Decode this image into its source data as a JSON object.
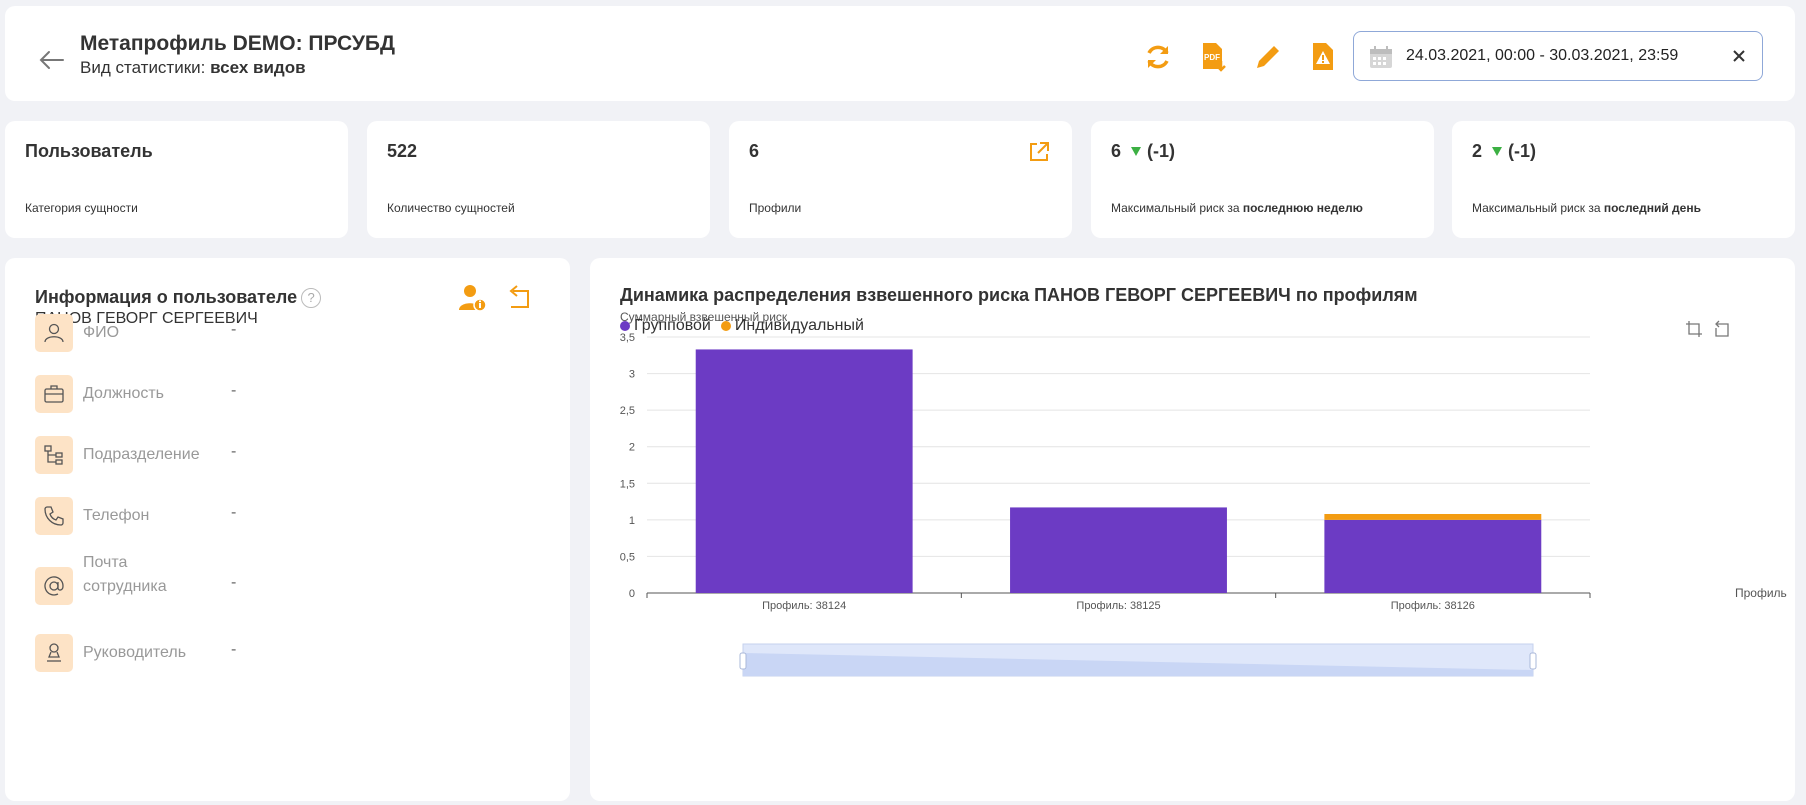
{
  "header": {
    "title": "Метапрофиль DEMO: ПРСУБД",
    "subtitle_prefix": "Вид статистики:",
    "subtitle_value": "всех видов",
    "date_range": "24.03.2021, 00:00 - 30.03.2021, 23:59",
    "icons": [
      "back-arrow-icon",
      "refresh-icon",
      "pdf-download-icon",
      "pencil-icon",
      "alert-file-icon",
      "calendar-icon",
      "close-icon"
    ],
    "accent_color": "#f39c12"
  },
  "stats": [
    {
      "value": "Пользователь",
      "label": "Категория сущности"
    },
    {
      "value": "522",
      "label": "Количество сущностей"
    },
    {
      "value": "6",
      "label": "Профили"
    },
    {
      "value": "6",
      "delta": "(-1)",
      "label_prefix": "Максимальный риск за",
      "label_bold": "последнюю неделю"
    },
    {
      "value": "2",
      "delta": "(-1)",
      "label_prefix": "Максимальный риск за",
      "label_bold": "последний день"
    }
  ],
  "user_info": {
    "title": "Информация о пользователе",
    "help": "?",
    "name": "ПАНОВ ГЕВОРГ СЕРГЕЕВИЧ",
    "fields": [
      {
        "label": "ФИО",
        "value": "-",
        "icon": "person-icon"
      },
      {
        "label": "Должность",
        "value": "-",
        "icon": "briefcase-icon"
      },
      {
        "label": "Подразделение",
        "value": "-",
        "icon": "org-structure-icon"
      },
      {
        "label": "Телефон",
        "value": "-",
        "icon": "phone-icon"
      },
      {
        "label": "Почта сотрудника",
        "value": "-",
        "icon": "at-sign-icon"
      },
      {
        "label": "Руководитель",
        "value": "-",
        "icon": "manager-icon"
      }
    ]
  },
  "chart_data": {
    "type": "bar",
    "stacked": true,
    "title": "Динамика распределения взвешенного риска ПАНОВ ГЕВОРГ СЕРГЕЕВИЧ по профилям",
    "ylabel": "Суммарный взвешенный риск",
    "xlabel": "Профиль",
    "categories": [
      "Профиль: 38124",
      "Профиль: 38125",
      "Профиль: 38126"
    ],
    "series": [
      {
        "name": "Групповой",
        "values": [
          3.33,
          1.17,
          1.0
        ],
        "color": "#6c3bc4"
      },
      {
        "name": "Индивидуальный",
        "values": [
          0,
          0,
          0.08
        ],
        "color": "#f39c12"
      }
    ],
    "ylim": [
      0,
      3.5
    ],
    "yticks": [
      "0",
      "0,5",
      "1",
      "1,5",
      "2",
      "2,5",
      "3",
      "3,5"
    ],
    "grid": true,
    "legend_position": "top-left"
  }
}
